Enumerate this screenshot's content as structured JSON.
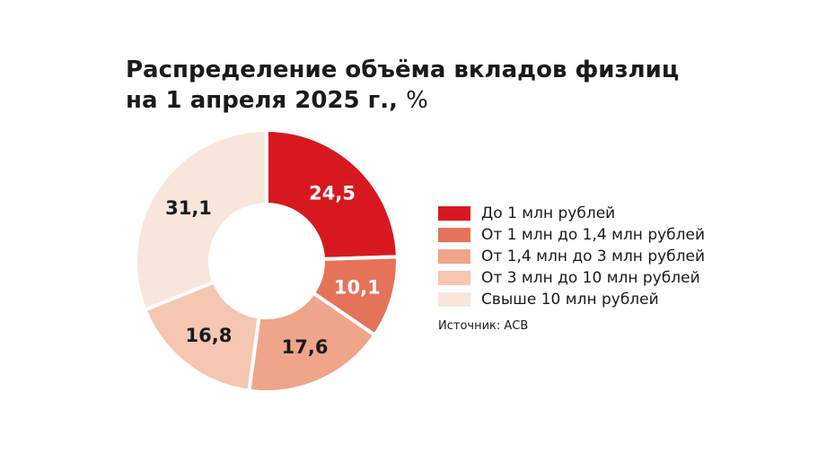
{
  "chart_data": {
    "type": "pie",
    "title_line1": "Распределение объёма вкладов физлиц",
    "title_line2": "на 1 апреля 2025 г.,",
    "title_unit": "%",
    "categories": [
      "До 1 млн рублей",
      "От 1 млн до 1,4 млн рублей",
      "От 1,4 млн до 3 млн рублей",
      "От 3 млн до 10 млн рублей",
      "Свыше 10 млн рублей"
    ],
    "values": [
      24.5,
      10.1,
      17.6,
      16.8,
      31.1
    ],
    "value_labels": [
      "24,5",
      "10,1",
      "17,6",
      "16,8",
      "31,1"
    ],
    "colors": [
      "#d7191f",
      "#e4735a",
      "#efa589",
      "#f5c6b2",
      "#f8e5dc"
    ],
    "label_colors": [
      "#ffffff",
      "#ffffff",
      "#1a1a1a",
      "#1a1a1a",
      "#1a1a1a"
    ],
    "donut": true,
    "legend_position": "right",
    "source": "Источник: АСВ"
  }
}
